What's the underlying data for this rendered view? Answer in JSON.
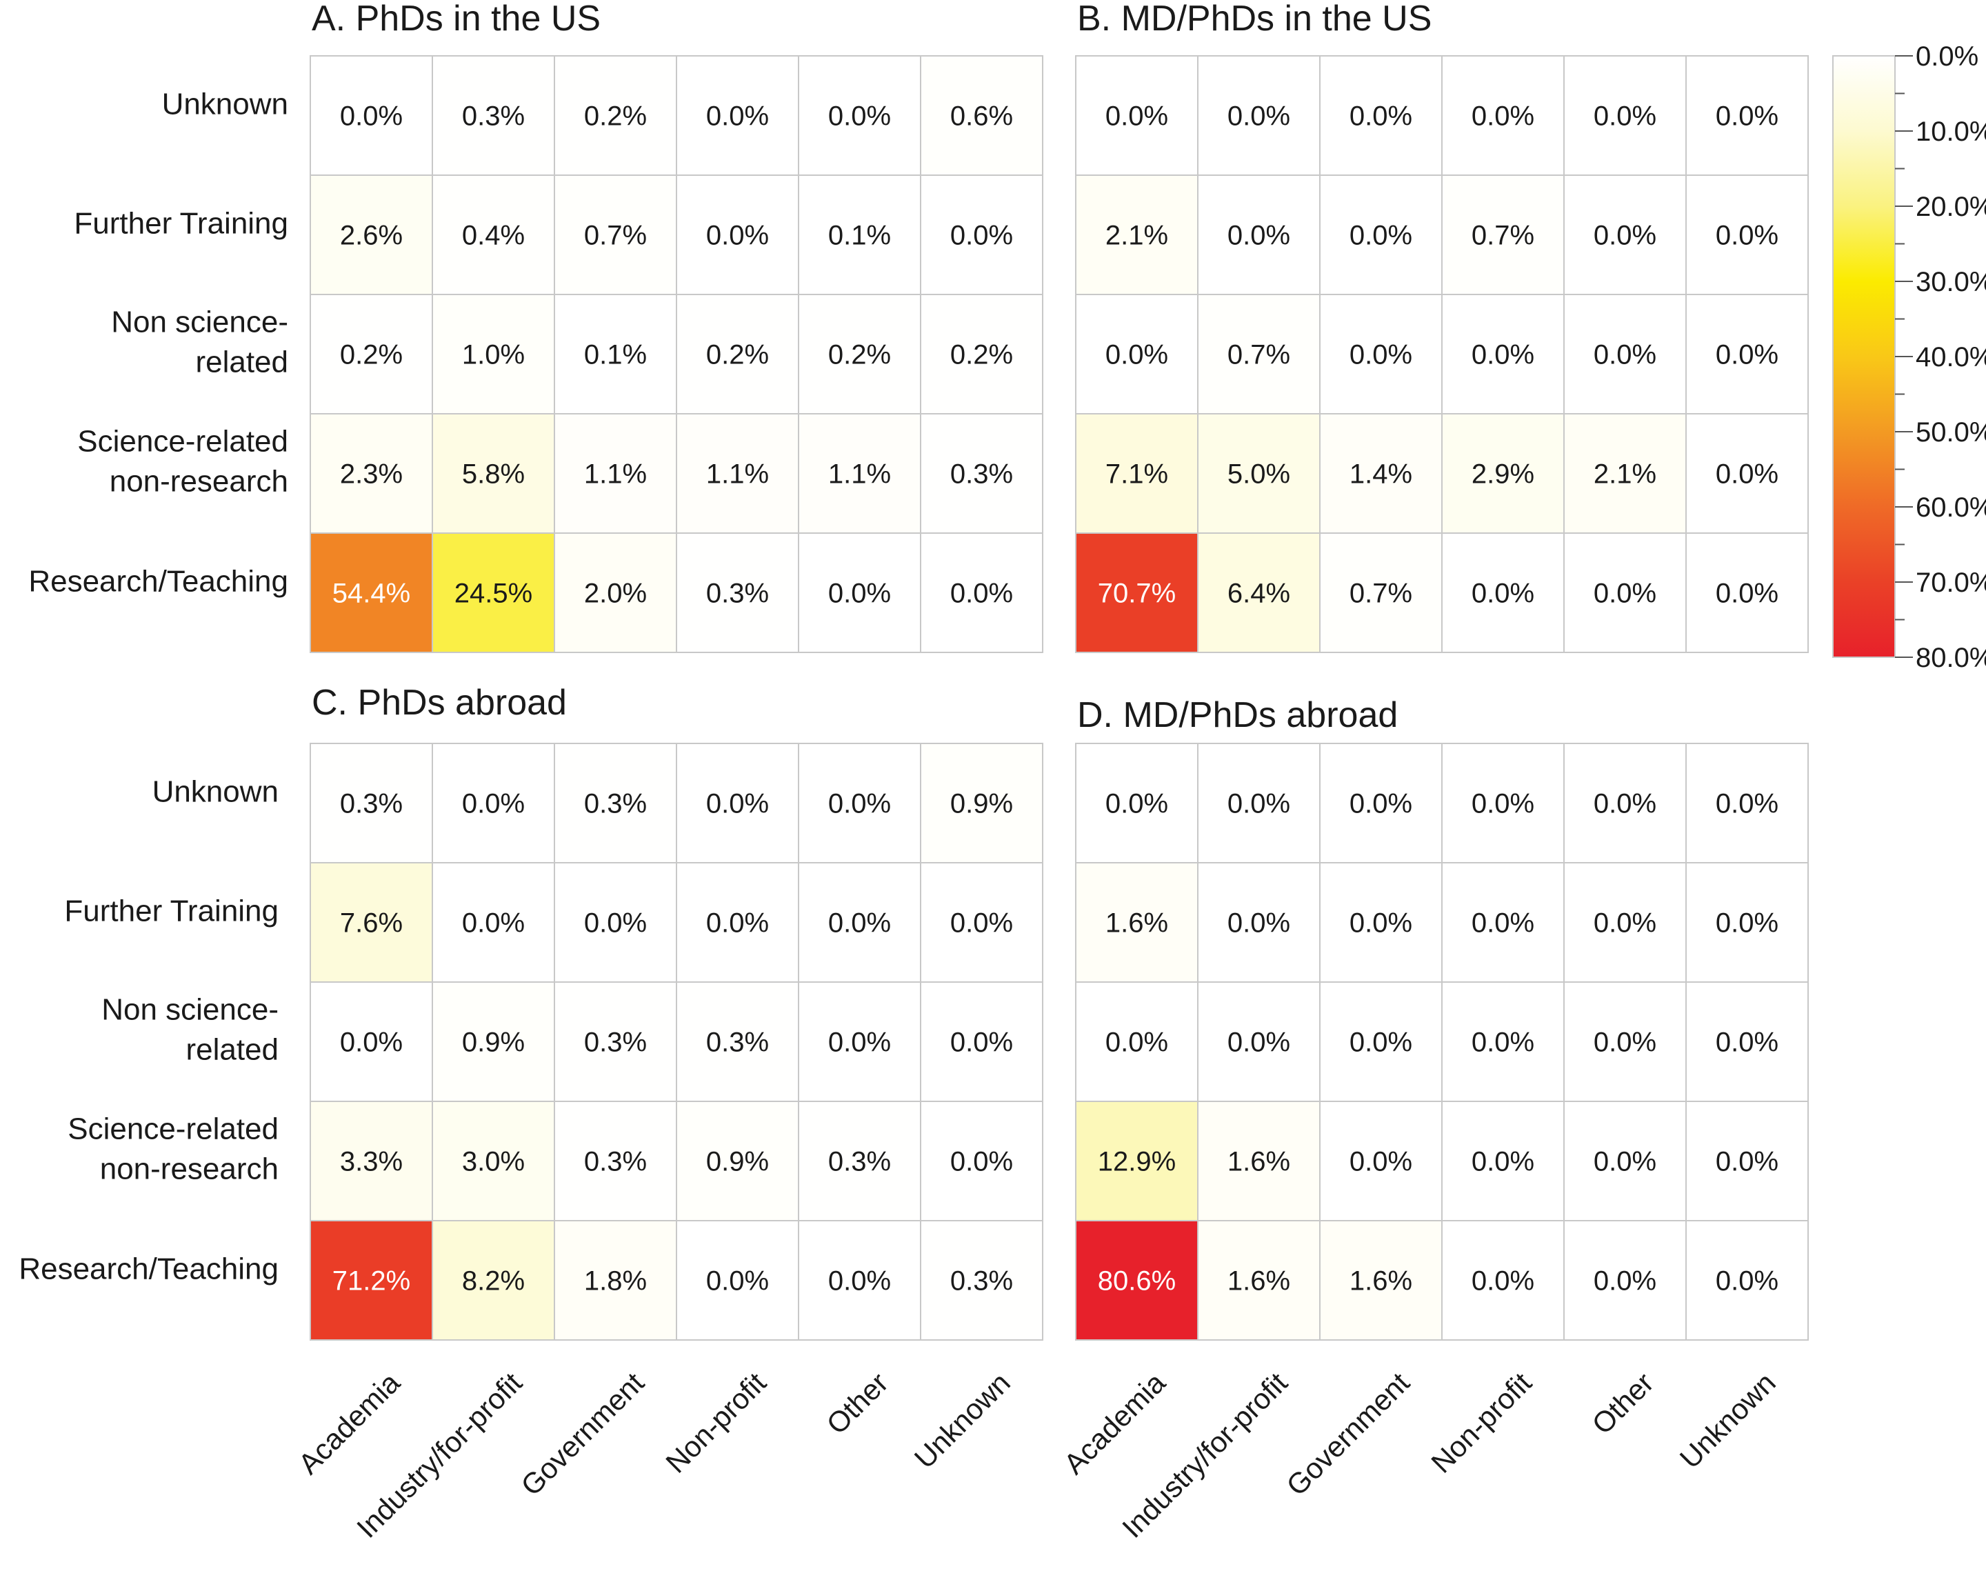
{
  "chart_data": {
    "type": "heatmap",
    "row_categories": [
      "Unknown",
      "Further Training",
      "Non science-related",
      "Science-related non-research",
      "Research/Teaching"
    ],
    "row_label_lines": [
      [
        "Unknown"
      ],
      [
        "Further Training"
      ],
      [
        "Non science-",
        "related"
      ],
      [
        "Science-related",
        "non-research"
      ],
      [
        "Research/Teaching"
      ]
    ],
    "column_categories": [
      "Academia",
      "Industry/for-profit",
      "Government",
      "Non-profit",
      "Other",
      "Unknown"
    ],
    "value_unit": "%",
    "color_scale": {
      "min": 0,
      "max": 80,
      "ticks": [
        "0.0%",
        "10.0%",
        "20.0%",
        "30.0%",
        "40.0%",
        "50.0%",
        "60.0%",
        "70.0%",
        "80.0%"
      ],
      "stops": [
        {
          "value": 0,
          "color": "#ffffff"
        },
        {
          "value": 10,
          "color": "#fdfad0"
        },
        {
          "value": 20,
          "color": "#faf280"
        },
        {
          "value": 30,
          "color": "#fbeb00"
        },
        {
          "value": 40,
          "color": "#f9c817"
        },
        {
          "value": 50,
          "color": "#f39a23"
        },
        {
          "value": 60,
          "color": "#ef6a27"
        },
        {
          "value": 70,
          "color": "#ea4127"
        },
        {
          "value": 80,
          "color": "#e7212b"
        }
      ]
    },
    "panels": [
      {
        "title": "A. PhDs in the US",
        "values": [
          [
            0.0,
            0.3,
            0.2,
            0.0,
            0.0,
            0.6
          ],
          [
            2.6,
            0.4,
            0.7,
            0.0,
            0.1,
            0.0
          ],
          [
            0.2,
            1.0,
            0.1,
            0.2,
            0.2,
            0.2
          ],
          [
            2.3,
            5.8,
            1.1,
            1.1,
            1.1,
            0.3
          ],
          [
            54.4,
            24.5,
            2.0,
            0.3,
            0.0,
            0.0
          ]
        ]
      },
      {
        "title": "B. MD/PhDs in the US",
        "values": [
          [
            0.0,
            0.0,
            0.0,
            0.0,
            0.0,
            0.0
          ],
          [
            2.1,
            0.0,
            0.0,
            0.7,
            0.0,
            0.0
          ],
          [
            0.0,
            0.7,
            0.0,
            0.0,
            0.0,
            0.0
          ],
          [
            7.1,
            5.0,
            1.4,
            2.9,
            2.1,
            0.0
          ],
          [
            70.7,
            6.4,
            0.7,
            0.0,
            0.0,
            0.0
          ]
        ]
      },
      {
        "title": "C. PhDs abroad",
        "values": [
          [
            0.3,
            0.0,
            0.3,
            0.0,
            0.0,
            0.9
          ],
          [
            7.6,
            0.0,
            0.0,
            0.0,
            0.0,
            0.0
          ],
          [
            0.0,
            0.9,
            0.3,
            0.3,
            0.0,
            0.0
          ],
          [
            3.3,
            3.0,
            0.3,
            0.9,
            0.3,
            0.0
          ],
          [
            71.2,
            8.2,
            1.8,
            0.0,
            0.0,
            0.3
          ]
        ]
      },
      {
        "title": "D. MD/PhDs abroad",
        "values": [
          [
            0.0,
            0.0,
            0.0,
            0.0,
            0.0,
            0.0
          ],
          [
            1.6,
            0.0,
            0.0,
            0.0,
            0.0,
            0.0
          ],
          [
            0.0,
            0.0,
            0.0,
            0.0,
            0.0,
            0.0
          ],
          [
            12.9,
            1.6,
            0.0,
            0.0,
            0.0,
            0.0
          ],
          [
            80.6,
            1.6,
            1.6,
            0.0,
            0.0,
            0.0
          ]
        ]
      }
    ]
  }
}
